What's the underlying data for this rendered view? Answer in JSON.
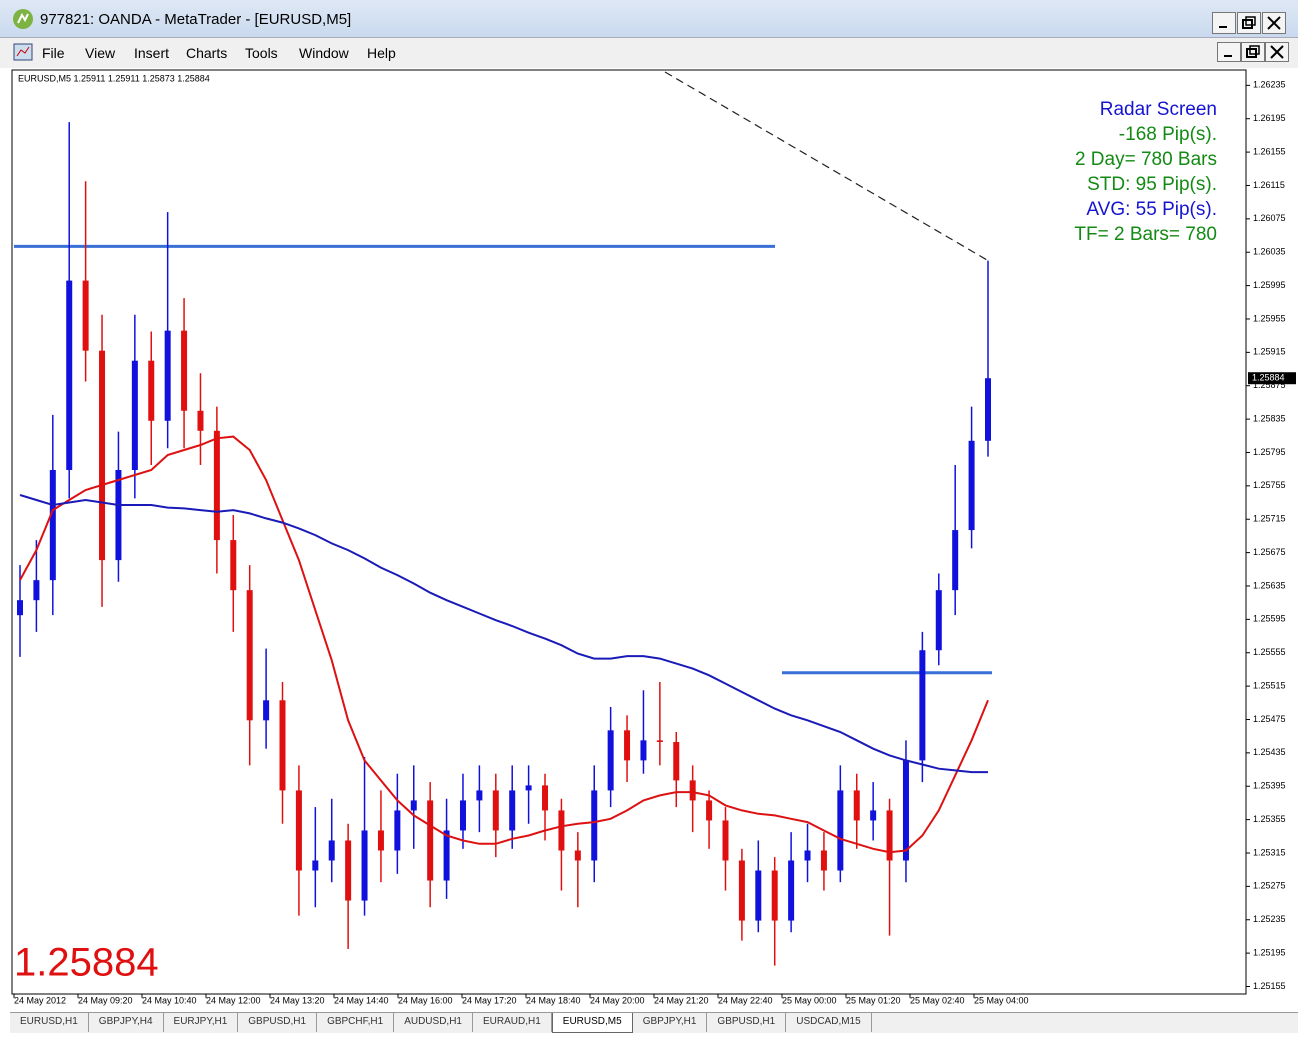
{
  "window": {
    "title": "977821: OANDA - MetaTrader - [EURUSD,M5]",
    "menu": [
      "File",
      "View",
      "Insert",
      "Charts",
      "Tools",
      "Window",
      "Help"
    ],
    "tabs": [
      "EURUSD,H1",
      "GBPJPY,H4",
      "EURJPY,H1",
      "GBPUSD,H1",
      "GBPCHF,H1",
      "AUDUSD,H1",
      "EURAUD,H1",
      "EURUSD,M5",
      "GBPJPY,H1",
      "GBPUSD,H1",
      "USDCAD,M15"
    ],
    "active_tab": 7
  },
  "chart_data": {
    "type": "candlestick",
    "info": "EURUSD,M5  1.25911 1.25911 1.25873 1.25884",
    "current_price": 1.25884,
    "bull_color": "#1111dd",
    "bear_color": "#e01010",
    "ylim": [
      1.25146,
      1.26251
    ],
    "yticks": [
      1.26235,
      1.26195,
      1.26155,
      1.26115,
      1.26075,
      1.26035,
      1.25995,
      1.25955,
      1.25915,
      1.25875,
      1.25835,
      1.25795,
      1.25755,
      1.25715,
      1.25675,
      1.25635,
      1.25595,
      1.25555,
      1.25515,
      1.25475,
      1.25435,
      1.25395,
      1.25355,
      1.25315,
      1.25275,
      1.25235,
      1.25195,
      1.25155
    ],
    "x_labels": [
      "24 May 2012",
      "24 May 09:20",
      "24 May 10:40",
      "24 May 12:00",
      "24 May 13:20",
      "24 May 14:40",
      "24 May 16:00",
      "24 May 17:20",
      "24 May 18:40",
      "24 May 20:00",
      "24 May 21:20",
      "24 May 22:40",
      "25 May 00:00",
      "25 May 01:20",
      "25 May 02:40",
      "25 May 04:00"
    ],
    "open": [
      1.256,
      1.25618,
      1.25642,
      1.25774,
      1.26001,
      1.25917,
      1.25666,
      1.25774,
      1.25905,
      1.25833,
      1.25941,
      1.25845,
      1.25821,
      1.2569,
      1.2563,
      1.25474,
      1.25498,
      1.2539,
      1.25294,
      1.25306,
      1.2533,
      1.25258,
      1.25342,
      1.25318,
      1.25366,
      1.25378,
      1.25282,
      1.25342,
      1.25378,
      1.2539,
      1.25342,
      1.2539,
      1.25396,
      1.25366,
      1.25318,
      1.25306,
      1.2539,
      1.25462,
      1.25426,
      1.2545,
      1.25448,
      1.25402,
      1.25378,
      1.25354,
      1.25306,
      1.25234,
      1.25294,
      1.25234,
      1.25306,
      1.25318,
      1.25294,
      1.2539,
      1.25354,
      1.25366,
      1.25306,
      1.25426,
      1.25558,
      1.2563,
      1.25702,
      1.25809
    ],
    "high": [
      1.2566,
      1.2569,
      1.2584,
      1.26191,
      1.2612,
      1.2596,
      1.2582,
      1.2596,
      1.2594,
      1.26083,
      1.2598,
      1.2589,
      1.2585,
      1.2572,
      1.2566,
      1.2556,
      1.2552,
      1.2542,
      1.2537,
      1.2538,
      1.2535,
      1.2543,
      1.2539,
      1.2541,
      1.2542,
      1.254,
      1.2538,
      1.2541,
      1.2542,
      1.2541,
      1.2542,
      1.2542,
      1.2541,
      1.2538,
      1.2534,
      1.2542,
      1.2549,
      1.2548,
      1.2551,
      1.2552,
      1.2546,
      1.2542,
      1.2539,
      1.2537,
      1.2532,
      1.2533,
      1.2531,
      1.2534,
      1.2535,
      1.2534,
      1.2542,
      1.2541,
      1.254,
      1.2538,
      1.2545,
      1.2558,
      1.2565,
      1.2578,
      1.2585,
      1.26025
    ],
    "low": [
      1.2555,
      1.2558,
      1.256,
      1.2574,
      1.2588,
      1.2561,
      1.2564,
      1.2574,
      1.2578,
      1.258,
      1.258,
      1.2578,
      1.2565,
      1.2558,
      1.2542,
      1.2544,
      1.2535,
      1.2524,
      1.2525,
      1.2528,
      1.252,
      1.2524,
      1.2528,
      1.2529,
      1.2532,
      1.2525,
      1.2526,
      1.2532,
      1.2534,
      1.2531,
      1.2532,
      1.2535,
      1.2533,
      1.2527,
      1.2525,
      1.2528,
      1.2537,
      1.254,
      1.2541,
      1.2542,
      1.2537,
      1.2534,
      1.2532,
      1.2527,
      1.2521,
      1.2522,
      1.2518,
      1.2522,
      1.2528,
      1.2527,
      1.2528,
      1.2532,
      1.2533,
      1.25216,
      1.2528,
      1.254,
      1.2554,
      1.256,
      1.2568,
      1.2579
    ],
    "close": [
      1.25618,
      1.25642,
      1.25774,
      1.26001,
      1.25917,
      1.25666,
      1.25774,
      1.25905,
      1.25833,
      1.25941,
      1.25845,
      1.25821,
      1.2569,
      1.2563,
      1.25474,
      1.25498,
      1.2539,
      1.25294,
      1.25306,
      1.2533,
      1.25258,
      1.25342,
      1.25318,
      1.25366,
      1.25378,
      1.25282,
      1.25342,
      1.25378,
      1.2539,
      1.25342,
      1.2539,
      1.25396,
      1.25366,
      1.25318,
      1.25306,
      1.2539,
      1.25462,
      1.25426,
      1.2545,
      1.25448,
      1.25402,
      1.25378,
      1.25354,
      1.25306,
      1.25234,
      1.25294,
      1.25234,
      1.25306,
      1.25318,
      1.25294,
      1.2539,
      1.25354,
      1.25366,
      1.25306,
      1.25426,
      1.25558,
      1.2563,
      1.25702,
      1.25809,
      1.25884
    ],
    "moving_averages": [
      {
        "color": "#dd1111",
        "values": [
          1.25642,
          1.25678,
          1.25726,
          1.25738,
          1.2575,
          1.25756,
          1.25762,
          1.25768,
          1.25774,
          1.25792,
          1.25798,
          1.25804,
          1.25812,
          1.25814,
          1.25798,
          1.25762,
          1.25714,
          1.25666,
          1.25606,
          1.25546,
          1.25474,
          1.25426,
          1.25402,
          1.25378,
          1.2536,
          1.25348,
          1.25336,
          1.2533,
          1.25326,
          1.25326,
          1.25332,
          1.25336,
          1.25342,
          1.25347,
          1.2535,
          1.25352,
          1.25356,
          1.25366,
          1.25378,
          1.25384,
          1.25388,
          1.25388,
          1.25384,
          1.25372,
          1.25366,
          1.25362,
          1.2536,
          1.25356,
          1.25352,
          1.25342,
          1.25332,
          1.25326,
          1.2532,
          1.25316,
          1.25318,
          1.25336,
          1.25366,
          1.25408,
          1.2545,
          1.25498
        ]
      },
      {
        "color": "#1a1ab8",
        "values": [
          1.25744,
          1.25738,
          1.25732,
          1.25735,
          1.25738,
          1.25735,
          1.25732,
          1.25732,
          1.25732,
          1.25729,
          1.25728,
          1.25726,
          1.25724,
          1.25726,
          1.25722,
          1.25716,
          1.25711,
          1.25704,
          1.25696,
          1.25686,
          1.25678,
          1.25668,
          1.25657,
          1.25648,
          1.25638,
          1.25627,
          1.25618,
          1.2561,
          1.25602,
          1.25594,
          1.25587,
          1.25579,
          1.25572,
          1.25564,
          1.25554,
          1.25548,
          1.25548,
          1.25551,
          1.25551,
          1.25548,
          1.25542,
          1.25536,
          1.25528,
          1.25518,
          1.25508,
          1.25498,
          1.25488,
          1.2548,
          1.25474,
          1.25467,
          1.2546,
          1.2545,
          1.2544,
          1.25432,
          1.25426,
          1.25421,
          1.25416,
          1.25414,
          1.25412,
          1.25412
        ]
      }
    ],
    "hlines": [
      {
        "value": 1.26042,
        "color": "#3a6fd8"
      },
      {
        "value": 1.25531,
        "color": "#3a6fd8"
      }
    ],
    "trendline": {
      "values": [
        1.26251,
        1.26025
      ],
      "color": "#222"
    },
    "annotations": [
      {
        "text": "Radar Screen",
        "color": "#1515d0"
      },
      {
        "text": "-168 Pip(s).",
        "color": "#138a13"
      },
      {
        "text": "2 Day= 780 Bars",
        "color": "#138a13"
      },
      {
        "text": "STD: 95 Pip(s).",
        "color": "#138a13"
      },
      {
        "text": "AVG: 55 Pip(s).",
        "color": "#1515d0"
      },
      {
        "text": "TF= 2 Bars= 780",
        "color": "#138a13"
      }
    ]
  }
}
